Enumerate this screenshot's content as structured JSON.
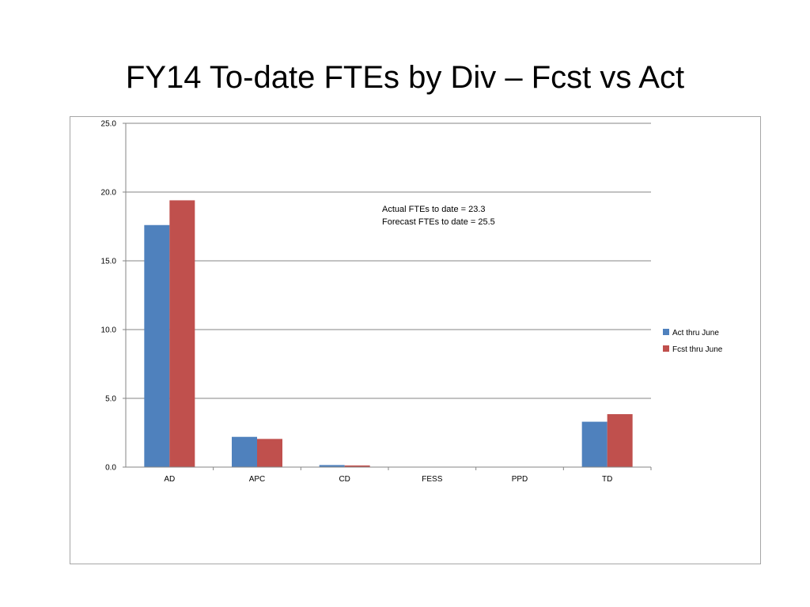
{
  "slide": {
    "title": "FY14 To-date FTEs by Div – Fcst vs Act"
  },
  "chart_data": {
    "type": "bar",
    "title": "",
    "xlabel": "",
    "ylabel": "",
    "categories": [
      "AD",
      "APC",
      "CD",
      "FESS",
      "PPD",
      "TD"
    ],
    "series": [
      {
        "name": "Act thru June",
        "values": [
          17.6,
          2.2,
          0.15,
          0,
          0,
          3.3
        ],
        "color": "#4f81bd"
      },
      {
        "name": "Fcst thru June",
        "values": [
          19.4,
          2.05,
          0.12,
          0,
          0,
          3.85
        ],
        "color": "#c0504d"
      }
    ],
    "ylim": [
      0,
      25
    ],
    "yticks": [
      "0.0",
      "5.0",
      "10.0",
      "15.0",
      "20.0",
      "25.0"
    ],
    "ytick_values": [
      0,
      5,
      10,
      15,
      20,
      25
    ],
    "grid": true,
    "legend_position": "right",
    "annotations": [
      "Actual FTEs to date = 23.3",
      "Forecast FTEs to date = 25.5"
    ]
  }
}
